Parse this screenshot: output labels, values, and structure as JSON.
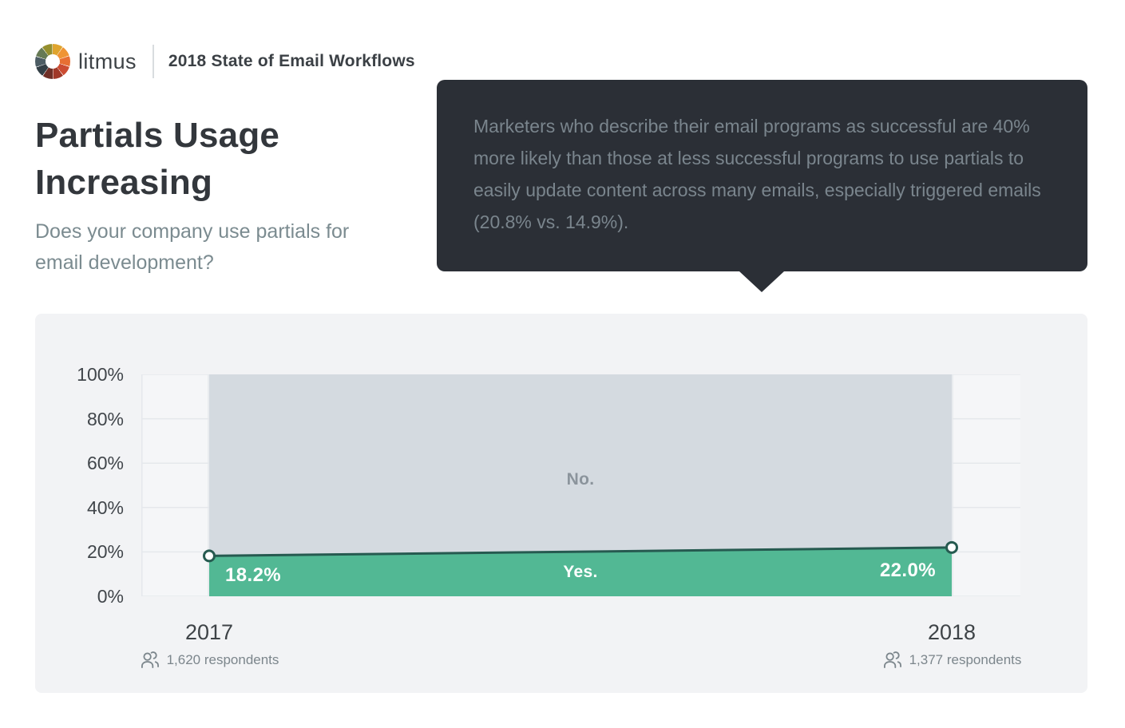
{
  "header": {
    "brand": "litmus",
    "report_title": "2018 State of Email Workflows"
  },
  "page": {
    "title": "Partials Usage Increasing",
    "subtitle": "Does your company use partials for email development?"
  },
  "callout": {
    "text": "Marketers who describe their email programs as successful are 40% more likely than those at less successful programs to use partials to easily update content across many emails, especially triggered emails (20.8% vs. 14.9%)."
  },
  "chart_data": {
    "type": "area",
    "stacked": true,
    "x": [
      "2017",
      "2018"
    ],
    "x_sub_labels": [
      "1,620 respondents",
      "1,377 respondents"
    ],
    "series": [
      {
        "name": "Yes.",
        "values": [
          18.2,
          22.0
        ]
      },
      {
        "name": "No.",
        "values": [
          81.8,
          78.0
        ]
      }
    ],
    "point_labels": [
      "18.2%",
      "22.0%"
    ],
    "yticks": [
      0,
      20,
      40,
      60,
      80,
      100
    ],
    "ytick_labels": [
      "0%",
      "20%",
      "40%",
      "60%",
      "80%",
      "100%"
    ],
    "ylim": [
      0,
      100
    ],
    "grid": true,
    "legend": "inline-labels"
  },
  "colors": {
    "accent_green": "#52b894",
    "accent_green_dark": "#265a50",
    "no_area": "#d4dae0",
    "no_label": "#8b949c",
    "plot_bg": "#f5f6f8",
    "gridline": "#e5e8ec",
    "panel_bg": "#f2f3f5",
    "tooltip_bg": "#2b2f36",
    "tooltip_text": "#7a858d",
    "axis_text": "#41464b",
    "muted_text": "#7c868c"
  }
}
